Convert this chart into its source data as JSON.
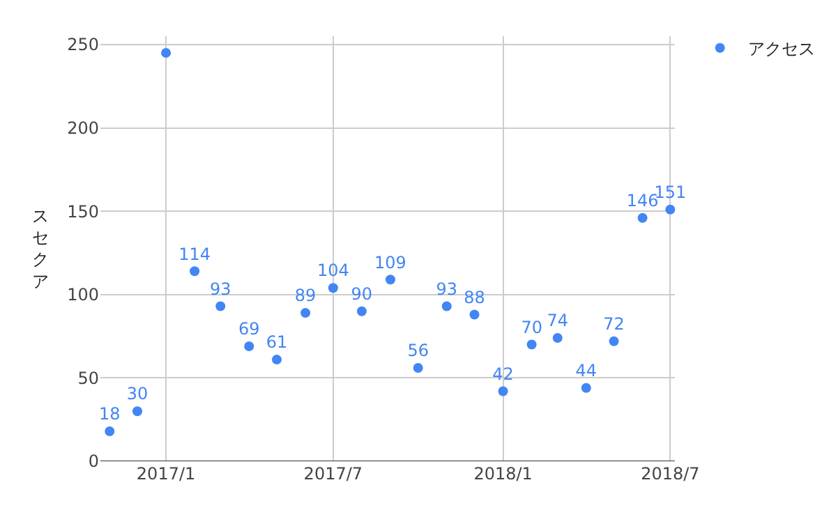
{
  "chart_data": {
    "type": "scatter",
    "ylabel": "スセクア",
    "x": [
      "2016-11",
      "2016-12",
      "2017-01",
      "2017-02",
      "2017-03",
      "2017-04",
      "2017-05",
      "2017-06",
      "2017-07",
      "2017-08",
      "2017-09",
      "2017-10",
      "2017-11",
      "2017-12",
      "2018-01",
      "2018-02",
      "2018-03",
      "2018-04",
      "2018-05",
      "2018-06",
      "2018-07"
    ],
    "series": [
      {
        "name": "アクセス",
        "color": "#4285f4",
        "values": [
          18,
          30,
          245,
          114,
          93,
          69,
          61,
          89,
          104,
          90,
          109,
          56,
          93,
          88,
          42,
          70,
          74,
          44,
          72,
          146,
          151
        ],
        "value_labels": [
          "18",
          "30",
          null,
          "114",
          "93",
          "69",
          "61",
          "89",
          "104",
          "90",
          "109",
          "56",
          "93",
          "88",
          "42",
          "70",
          "74",
          "44",
          "72",
          "146",
          "151"
        ]
      }
    ],
    "xlim": [
      "2016-10-22",
      "2018-07-06"
    ],
    "xticks": [
      {
        "value": "2017-01",
        "label": "2017/1"
      },
      {
        "value": "2017-07",
        "label": "2017/7"
      },
      {
        "value": "2018-01",
        "label": "2018/1"
      },
      {
        "value": "2018-07",
        "label": "2018/7"
      }
    ],
    "ylim": [
      0,
      255
    ],
    "yticks": [
      0,
      50,
      100,
      150,
      200,
      250
    ],
    "grid": true,
    "legend": "top right",
    "marker": "circle"
  }
}
